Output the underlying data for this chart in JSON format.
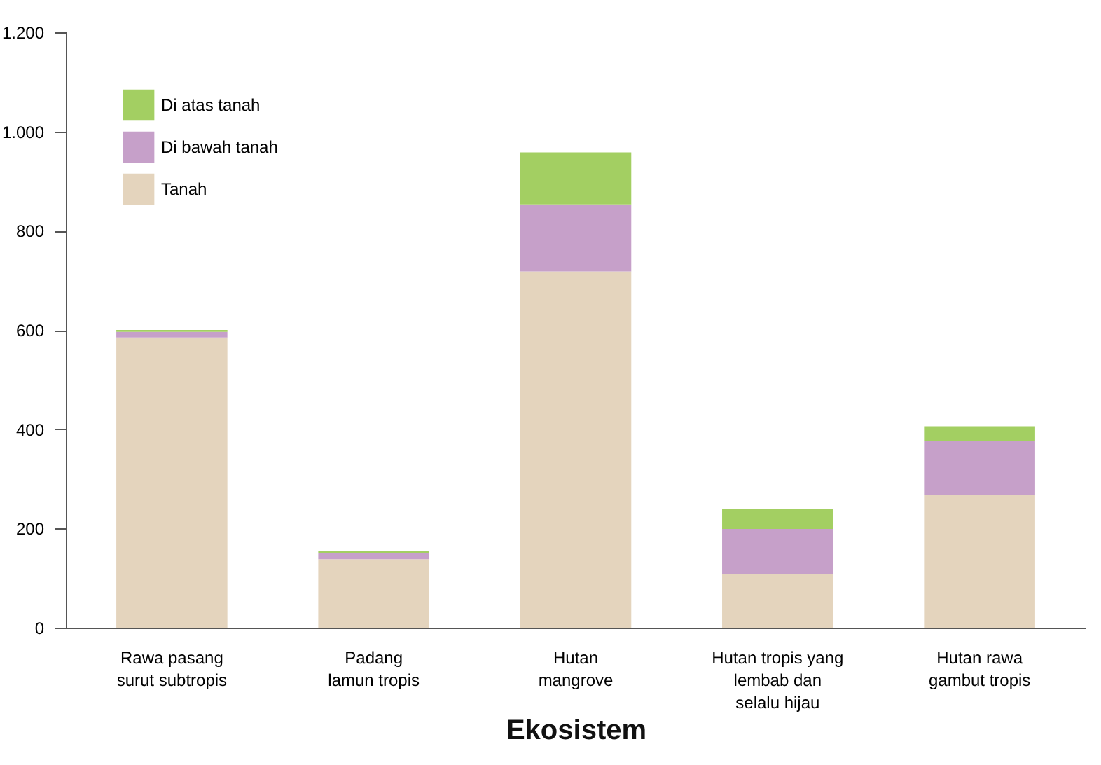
{
  "chart_data": {
    "type": "bar",
    "stacked": true,
    "xlabel": "Ekosistem",
    "categories": [
      "Rawa pasang\nsurut subtropis",
      "Padang\nlamun tropis",
      "Hutan\nmangrove",
      "Hutan tropis yang\nlembab dan\nselalu hijau",
      "Hutan rawa\ngambut tropis"
    ],
    "series": [
      {
        "name": "Tanah",
        "color": "#e4d4bd",
        "values": [
          585,
          138,
          718,
          108,
          268
        ]
      },
      {
        "name": "Di bawah tanah",
        "color": "#c6a0c9",
        "values": [
          11,
          12,
          135,
          91,
          108
        ]
      },
      {
        "name": "Di atas tanah",
        "color": "#a3cf62",
        "values": [
          4,
          5,
          105,
          41,
          30
        ]
      }
    ],
    "ylim": [
      0,
      1200
    ],
    "yticks": [
      0,
      200,
      400,
      600,
      800,
      {
        "value": 1000,
        "label": "1.000"
      },
      {
        "value": 1200,
        "label": "1.200"
      }
    ],
    "grid": false,
    "legend": "top left"
  }
}
